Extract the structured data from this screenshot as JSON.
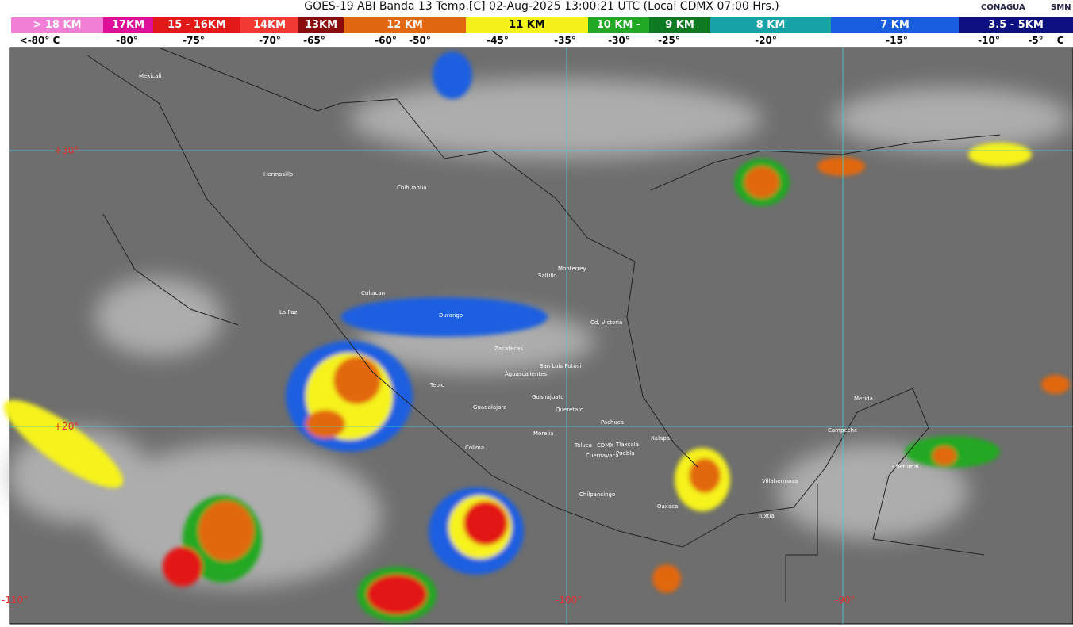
{
  "header": {
    "title": "GOES-19 ABI Banda 13 Temp.[C] 02-Aug-2025 13:00:21 UTC (Local CDMX  07:00 Hrs.)",
    "logos": [
      "CONAGUA",
      "SMN"
    ]
  },
  "legend": {
    "items": [
      {
        "label": "> 18 KM",
        "color": "#f27fd6"
      },
      {
        "label": "17KM",
        "color": "#dd1199"
      },
      {
        "label": "15 - 16KM",
        "color": "#e31818"
      },
      {
        "label": "14KM",
        "color": "#f23a32"
      },
      {
        "label": "13KM",
        "color": "#8a0c0c"
      },
      {
        "label": "12 KM",
        "color": "#e2680f"
      },
      {
        "label": "11 KM",
        "color": "#f5f21b"
      },
      {
        "label": "10 KM - ",
        "color": "#21a824"
      },
      {
        "label": "9 KM",
        "color": "#0d7a22"
      },
      {
        "label": "8 KM",
        "color": "#16a2a6"
      },
      {
        "label": "7 KM",
        "color": "#1a5ee0"
      },
      {
        "label": "3.5 - 5KM",
        "color": "#0b0f80"
      }
    ],
    "temps": [
      "<-80° C",
      "-80°",
      "-75°",
      "-70°",
      "-65°",
      "-60°",
      "-50°",
      "-45°",
      "-35°",
      "-30°",
      "-25°",
      "-20°",
      "-15°",
      "-10°",
      "-5°",
      "C"
    ]
  },
  "map": {
    "grid_labels": [
      "+30°",
      "+20°",
      "-110°",
      "-100°",
      "-90°"
    ],
    "cities": [
      "Mexicali",
      "Hermosillo",
      "Chihuahua",
      "La Paz",
      "Culiacan",
      "Durango",
      "Monterrey",
      "Saltillo",
      "Cd. Victoria",
      "Zacatecas",
      "San Luis Potosi",
      "Aguascalientes",
      "Tepic",
      "Guanajuato",
      "Guadalajara",
      "Queretaro",
      "Pachuca",
      "Morelia",
      "Colima",
      "Toluca",
      "CDMX",
      "Tlaxcala",
      "Puebla",
      "Cuernavaca",
      "Xalapa",
      "Chilpancingo",
      "Oaxaca",
      "Villahermosa",
      "Tuxtla",
      "Campeche",
      "Merida",
      "Chetumal"
    ]
  }
}
